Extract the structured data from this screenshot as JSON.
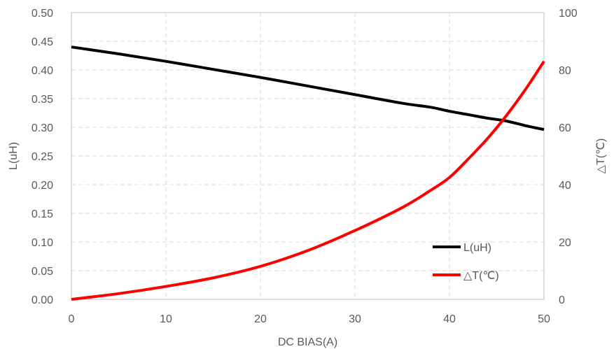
{
  "chart_data": {
    "type": "line",
    "title": "",
    "xlabel": "DC BIAS(A)",
    "ylabel": "L(uH)",
    "y2label": "△T(℃)",
    "xlim": [
      0,
      50
    ],
    "ylim": [
      0,
      0.5
    ],
    "y2lim": [
      0,
      100
    ],
    "x_ticks": [
      "0",
      "10",
      "20",
      "30",
      "40",
      "50"
    ],
    "y_ticks": [
      "0.00",
      "0.05",
      "0.10",
      "0.15",
      "0.20",
      "0.25",
      "0.30",
      "0.35",
      "0.40",
      "0.45",
      "0.50"
    ],
    "y2_ticks": [
      "0",
      "20",
      "40",
      "60",
      "80",
      "100"
    ],
    "grid": true,
    "legend": "bottom-right",
    "series": [
      {
        "name": "L(uH)",
        "axis": "left",
        "color": "#000000",
        "x": [
          0,
          5,
          10,
          15,
          20,
          25,
          30,
          35,
          38,
          40,
          42,
          44,
          46,
          48,
          50
        ],
        "y": [
          0.44,
          0.428,
          0.415,
          0.401,
          0.387,
          0.372,
          0.357,
          0.342,
          0.335,
          0.328,
          0.322,
          0.316,
          0.311,
          0.303,
          0.296
        ]
      },
      {
        "name": "△T(℃)",
        "axis": "right",
        "color": "#ff0000",
        "x": [
          0,
          5,
          10,
          15,
          20,
          25,
          30,
          35,
          38,
          40,
          42,
          44,
          46,
          48,
          50
        ],
        "y": [
          0,
          2,
          4.5,
          7.5,
          11.5,
          17,
          24,
          32,
          38,
          42.5,
          49,
          56,
          64,
          73,
          83
        ]
      }
    ]
  }
}
